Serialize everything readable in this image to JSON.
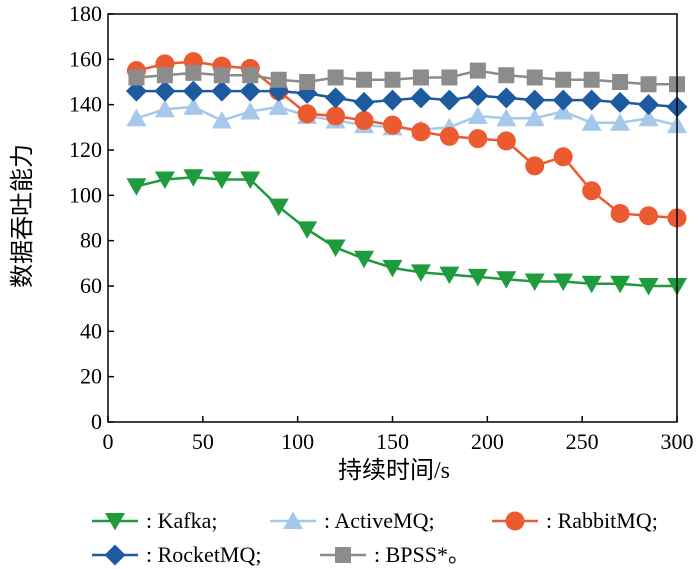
{
  "chart_data": {
    "type": "line",
    "xlabel": "持续时间/s",
    "ylabel": "数据吞吐能力",
    "xlim": [
      0,
      300
    ],
    "ylim": [
      0,
      180
    ],
    "xticks": [
      0,
      50,
      100,
      150,
      200,
      250,
      300
    ],
    "yticks": [
      0,
      20,
      40,
      60,
      80,
      100,
      120,
      140,
      160,
      180
    ],
    "grid": false,
    "legend_position": "bottom",
    "x": [
      15,
      30,
      45,
      60,
      75,
      90,
      105,
      120,
      135,
      150,
      165,
      180,
      195,
      210,
      225,
      240,
      255,
      270,
      285,
      300
    ],
    "series": [
      {
        "name": "Kafka",
        "legend_label": ": Kafka;",
        "color": "#1e9b3c",
        "marker": "triangle-down",
        "values": [
          104,
          107,
          108,
          107,
          107,
          95,
          85,
          77,
          72,
          68,
          66,
          65,
          64,
          63,
          62,
          62,
          61,
          61,
          60,
          60
        ]
      },
      {
        "name": "ActiveMQ",
        "legend_label": ": ActiveMQ;",
        "color": "#a6c8ea",
        "marker": "triangle-up",
        "values": [
          134,
          138,
          139,
          133,
          137,
          139,
          135,
          133,
          131,
          130,
          129,
          130,
          135,
          134,
          134,
          137,
          132,
          132,
          134,
          131
        ]
      },
      {
        "name": "RabbitMQ",
        "legend_label": ": RabbitMQ;",
        "color": "#ec5a2f",
        "marker": "circle",
        "values": [
          155,
          158,
          159,
          157,
          156,
          146,
          136,
          135,
          133,
          131,
          128,
          126,
          125,
          124,
          113,
          117,
          102,
          92,
          91,
          90
        ]
      },
      {
        "name": "RocketMQ",
        "legend_label": ": RocketMQ;",
        "color": "#1e5aa0",
        "marker": "diamond",
        "values": [
          146,
          146,
          146,
          146,
          146,
          146,
          145,
          143,
          141,
          142,
          143,
          142,
          144,
          143,
          142,
          142,
          142,
          141,
          140,
          139
        ]
      },
      {
        "name": "BPSS*",
        "legend_label": ": BPSS*。",
        "color": "#8c8c8c",
        "marker": "square",
        "values": [
          152,
          153,
          154,
          153,
          153,
          151,
          150,
          152,
          151,
          151,
          152,
          152,
          155,
          153,
          152,
          151,
          151,
          150,
          149,
          149
        ]
      }
    ]
  }
}
